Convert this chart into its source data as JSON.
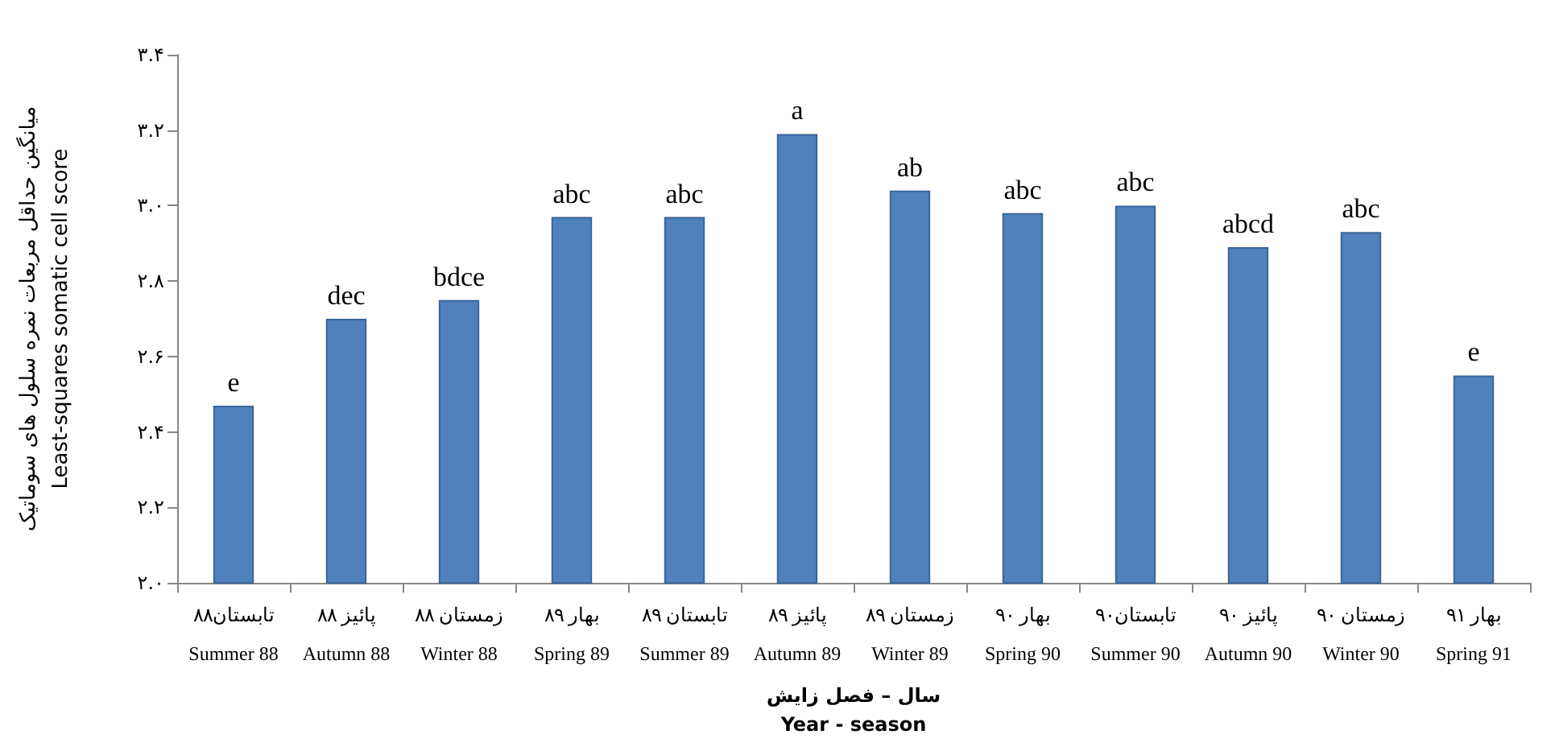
{
  "chart_data": {
    "type": "bar",
    "xlabel": "سال – فصل زایش\nYear - season",
    "ylabel": "میانگین حداقل مربعات نمره سلول های سوماتیک\nLeast-squares somatic cell score",
    "categories": [
      "تابستان۸۸\nSummer 88",
      "پائیز ۸۸\nAutumn 88",
      "زمستان ۸۸\nWinter 88",
      "بهار ۸۹\nSpring 89",
      "تابستان ۸۹\nSummer 89",
      "پائیز ۸۹\nAutumn 89",
      "زمستان ۸۹\nWinter 89",
      "بهار ۹۰\nSpring 90",
      "تابستان۹۰\nSummer 90",
      "پائیز ۹۰\nAutumn 90",
      "زمستان ۹۰\nWinter 90",
      "بهار ۹۱\nSpring 91"
    ],
    "values": [
      2.47,
      2.7,
      2.75,
      2.97,
      2.97,
      3.19,
      3.04,
      2.98,
      3.0,
      2.89,
      2.93,
      2.55
    ],
    "value_labels": [
      "e",
      "dec",
      "bdce",
      "abc",
      "abc",
      "a",
      "ab",
      "abc",
      "abc",
      "abcd",
      "abc",
      "e"
    ],
    "color": "#4f81bd",
    "ylim": [
      2.0,
      3.4
    ],
    "yticks": [
      {
        "value": 2.0,
        "label": "۲.۰"
      },
      {
        "value": 2.2,
        "label": "۲.۲"
      },
      {
        "value": 2.4,
        "label": "۲.۴"
      },
      {
        "value": 2.6,
        "label": "۲.۶"
      },
      {
        "value": 2.8,
        "label": "۲.۸"
      },
      {
        "value": 3.0,
        "label": "۳.۰"
      },
      {
        "value": 3.2,
        "label": "۳.۲"
      },
      {
        "value": 3.4,
        "label": "۳.۴"
      }
    ],
    "grid": false
  }
}
